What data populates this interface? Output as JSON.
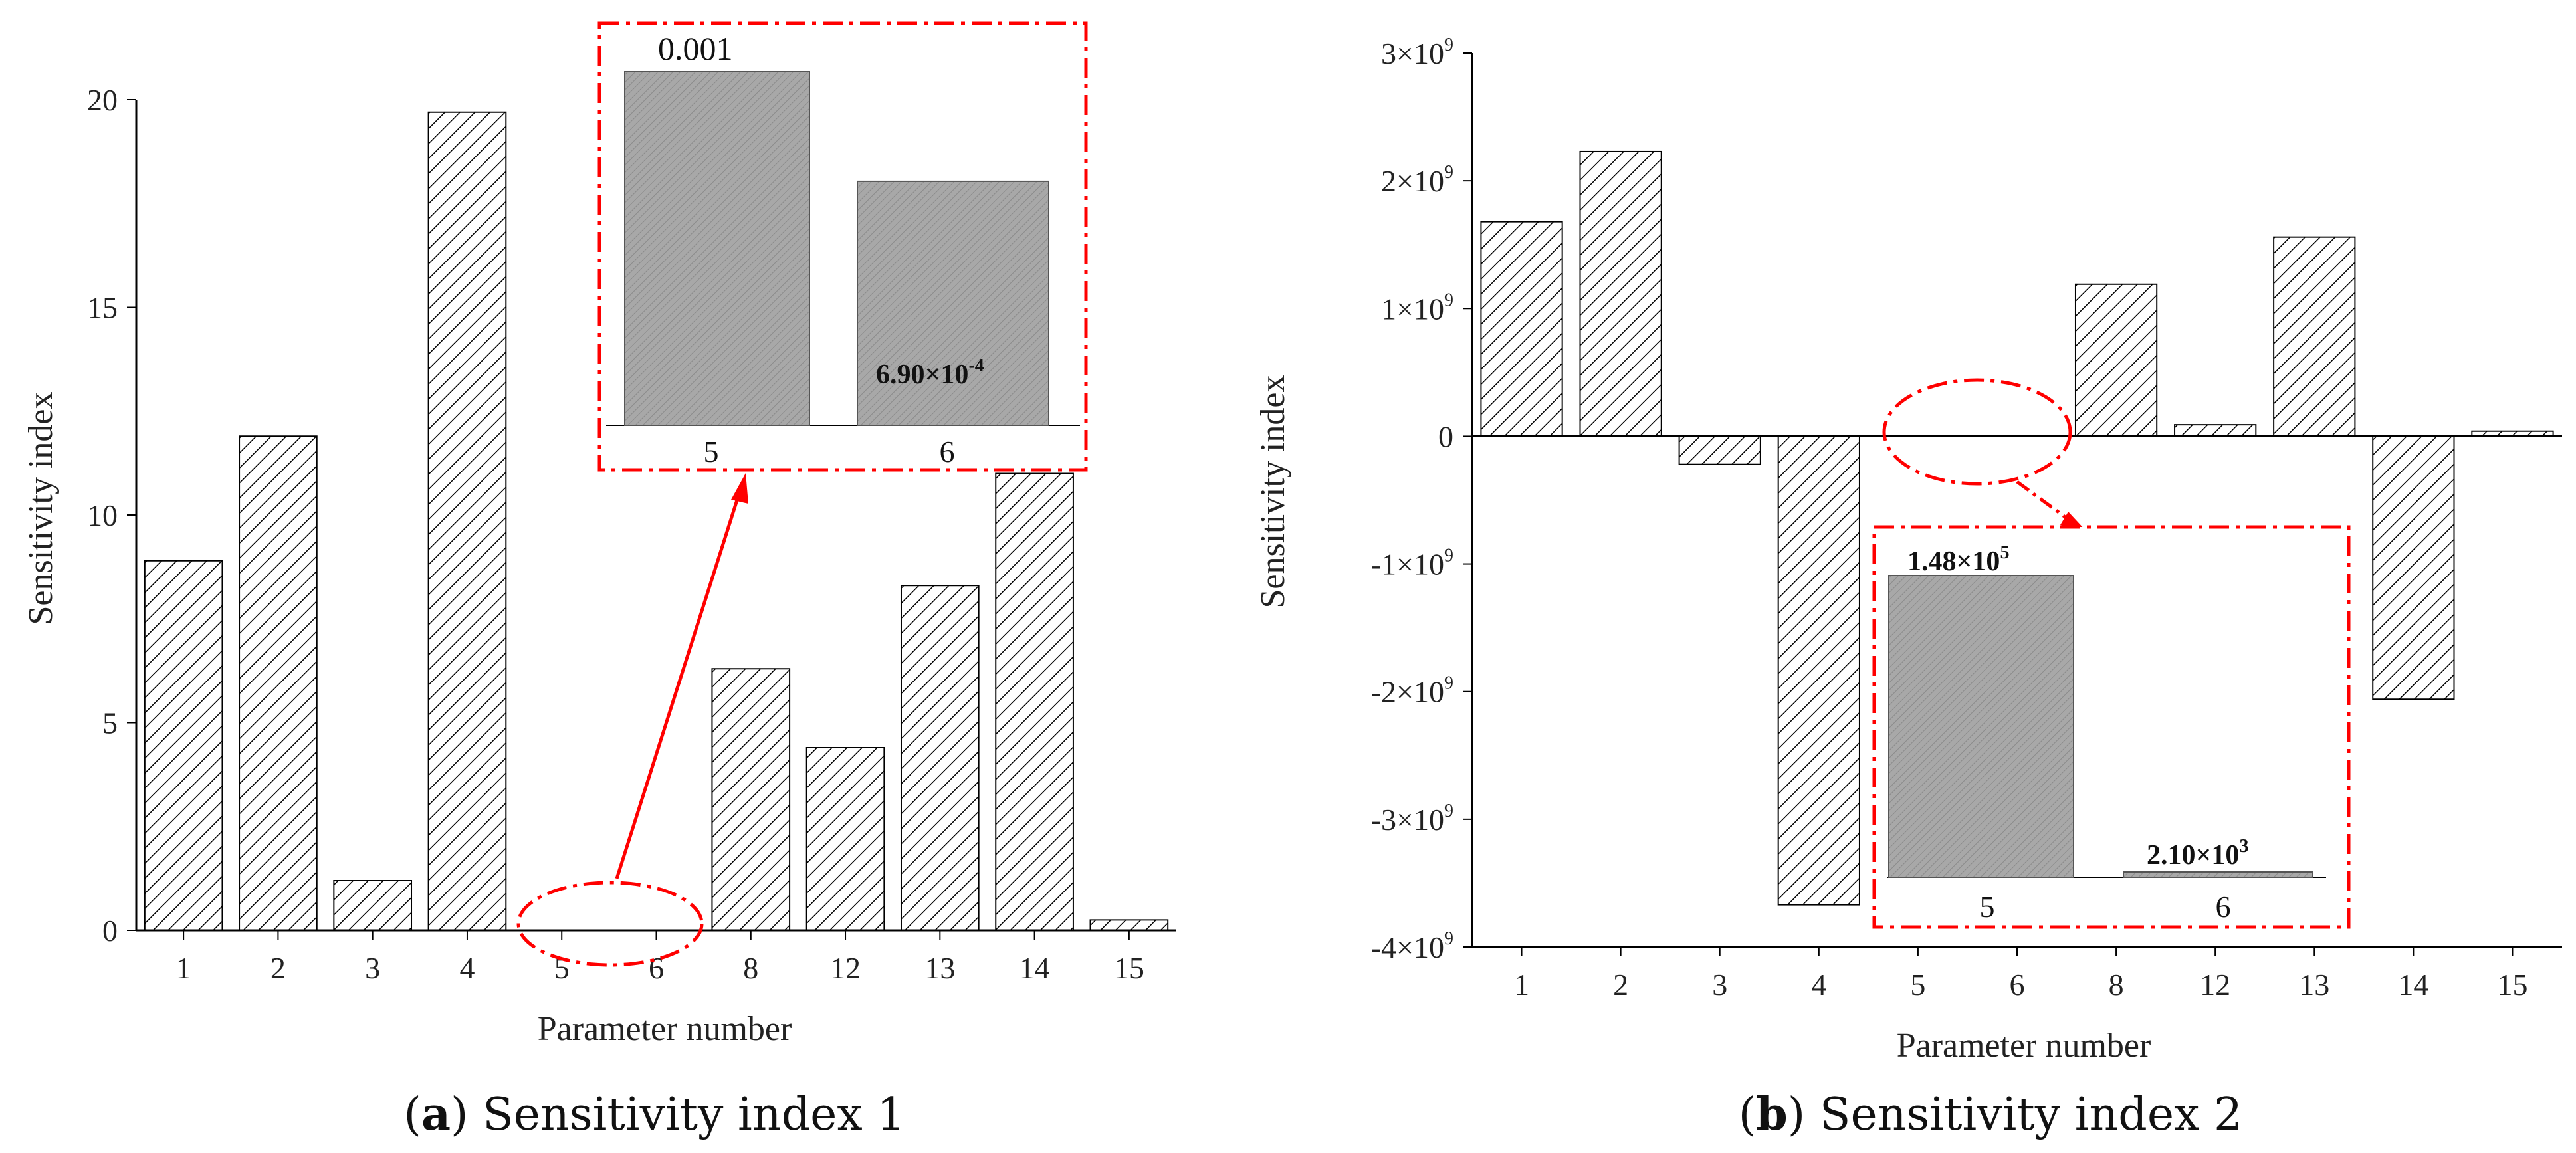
{
  "colors": {
    "bar_stroke": "#000000",
    "hatch": "#000000",
    "inset_fill": "#a8a8a8",
    "highlight": "#ff0000"
  },
  "chart_data": [
    {
      "type": "bar",
      "panel": "a",
      "caption_letter": "a",
      "caption_text": ") Sensitivity index 1",
      "caption_open": "(",
      "xlabel": "Parameter number",
      "ylabel": "Sensitivity index",
      "categories": [
        "1",
        "2",
        "3",
        "4",
        "5",
        "6",
        "8",
        "12",
        "13",
        "14",
        "15"
      ],
      "values": [
        8.9,
        11.9,
        1.2,
        19.7,
        0.001,
        0.00069,
        6.3,
        4.4,
        8.3,
        11.0,
        0.25
      ],
      "ylim": [
        0,
        20
      ],
      "yticks": [
        0,
        5,
        10,
        15,
        20
      ],
      "ytick_labels": [
        "0",
        "5",
        "10",
        "15",
        "20"
      ],
      "inset": {
        "categories": [
          "5",
          "6"
        ],
        "values": [
          0.001,
          0.00069
        ],
        "value_labels": [
          "0.001",
          "6.90×10"
        ],
        "value_label_sup": [
          "",
          "-4"
        ]
      }
    },
    {
      "type": "bar",
      "panel": "b",
      "caption_letter": "b",
      "caption_text": ") Sensitivity index 2",
      "caption_open": "(",
      "xlabel": "Parameter number",
      "ylabel": "Sensitivity index",
      "categories": [
        "1",
        "2",
        "3",
        "4",
        "5",
        "6",
        "8",
        "12",
        "13",
        "14",
        "15"
      ],
      "values": [
        1680000000.0,
        2230000000.0,
        -220000000.0,
        -3670000000.0,
        148000.0,
        2100.0,
        1190000000.0,
        90000000.0,
        1560000000.0,
        -2060000000.0,
        40000000.0
      ],
      "ylim": [
        -4000000000.0,
        3000000000.0
      ],
      "yticks": [
        -4000000000.0,
        -3000000000.0,
        -2000000000.0,
        -1000000000.0,
        0,
        1000000000.0,
        2000000000.0,
        3000000000.0
      ],
      "ytick_labels": [
        {
          "base": "-4×10",
          "exp": "9"
        },
        {
          "base": "-3×10",
          "exp": "9"
        },
        {
          "base": "-2×10",
          "exp": "9"
        },
        {
          "base": "-1×10",
          "exp": "9"
        },
        {
          "base": "0",
          "exp": ""
        },
        {
          "base": "1×10",
          "exp": "9"
        },
        {
          "base": "2×10",
          "exp": "9"
        },
        {
          "base": "3×10",
          "exp": "9"
        }
      ],
      "inset": {
        "categories": [
          "5",
          "6"
        ],
        "values": [
          148000.0,
          2100.0
        ],
        "value_labels": [
          "1.48×10",
          "2.10×10"
        ],
        "value_label_sup": [
          "5",
          "3"
        ]
      }
    }
  ]
}
